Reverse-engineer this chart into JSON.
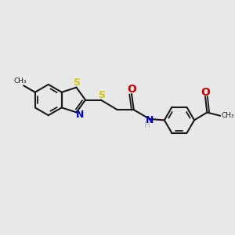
{
  "bg_color": "#e8e8e8",
  "bond_color": "#1a1a1a",
  "S_color": "#cccc00",
  "N_color": "#0000cc",
  "O_color": "#cc0000",
  "H_color": "#aabbcc",
  "methyl_label_benz": "CH₃",
  "methyl_label_ac": "CH₃",
  "N_label": "N",
  "S_label": "S",
  "H_label": "H",
  "O_label": "O"
}
